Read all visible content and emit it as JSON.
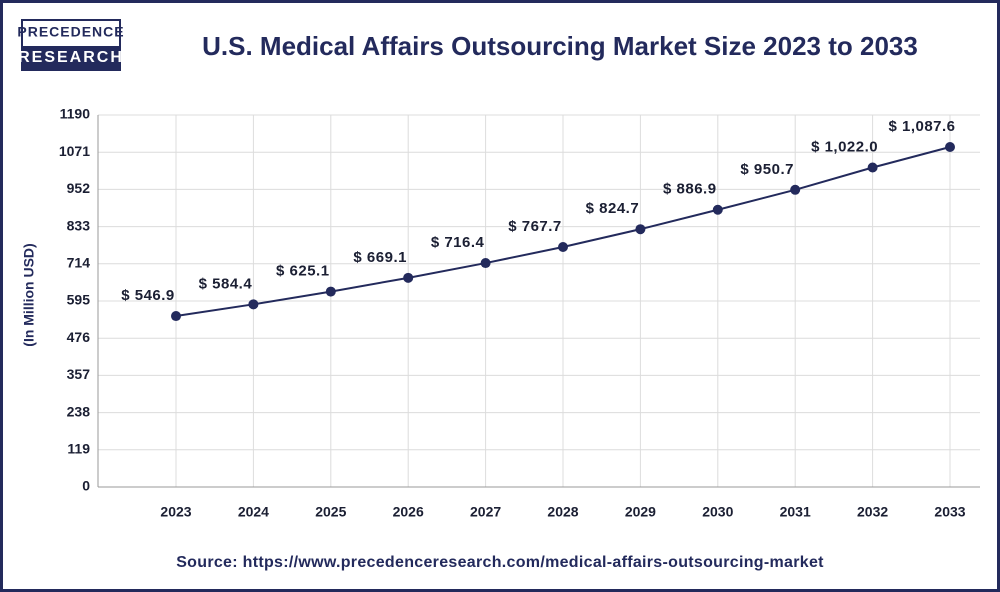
{
  "logo": {
    "line1": "PRECEDENCE",
    "line2": "RESEARCH"
  },
  "chart_data": {
    "type": "line",
    "title": "U.S. Medical Affairs Outsourcing Market Size 2023 to 2033",
    "y_label": "(In Million USD)",
    "categories": [
      "2023",
      "2024",
      "2025",
      "2026",
      "2027",
      "2028",
      "2029",
      "2030",
      "2031",
      "2032",
      "2033"
    ],
    "values": [
      546.9,
      584.4,
      625.1,
      669.1,
      716.4,
      767.7,
      824.7,
      886.9,
      950.7,
      1022.0,
      1087.6
    ],
    "value_labels": [
      "$ 546.9",
      "$ 584.4",
      "$ 625.1",
      "$ 669.1",
      "$ 716.4",
      "$ 767.7",
      "$ 824.7",
      "$ 886.9",
      "$ 950.7",
      "$ 1,022.0",
      "$ 1,087.6"
    ],
    "color": "#232a5c",
    "ylim": [
      0,
      1190
    ],
    "yticks": [
      0,
      119,
      238,
      357,
      476,
      595,
      714,
      833,
      952,
      1071,
      1190
    ],
    "grid": true,
    "source": "Source: https://www.precedenceresearch.com/medical-affairs-outsourcing-market"
  }
}
